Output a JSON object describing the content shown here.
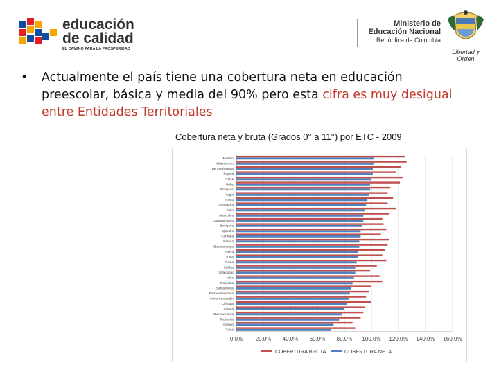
{
  "header": {
    "logo_left": {
      "line1": "educación",
      "line2": "de calidad",
      "tagline": "EL CAMINO PARA LA PROSPERIDAD",
      "colors": [
        "#e41e26",
        "#f7a600",
        "#0b4ea2",
        "#1a1a1a"
      ]
    },
    "ministry": {
      "line1": "Ministerio de",
      "line2": "Educación Nacional",
      "line3": "República de Colombia"
    },
    "motto": "Libertad y Orden"
  },
  "bullet": {
    "text_before": "Actualmente el país tiene una cobertura neta en educación preescolar, básica y media del 90% pero esta ",
    "text_red": "cifra es muy desigual entre Entidades Territoriales"
  },
  "chart_title": "Cobertura neta y bruta (Grados 0° a 11°)  por ETC - 2009",
  "chart_data": {
    "type": "bar",
    "orientation": "horizontal",
    "x_ticks": [
      "0,0%",
      "20,0%",
      "40,0%",
      "60,0%",
      "80,0%",
      "100,0%",
      "120,0%",
      "140,0%",
      "160,0%"
    ],
    "xlim": [
      0,
      160
    ],
    "grid": true,
    "legend_position": "bottom",
    "series": [
      {
        "name": "COBERTURA BRUTA",
        "color": "#c0504d"
      },
      {
        "name": "COBERTURA NETA",
        "color": "#4f81bd"
      }
    ],
    "categories": [
      "Medellín",
      "Villavicencio",
      "Bermeo/Manga",
      "Bogotá",
      "Vélez",
      "Uribe",
      "Envigado",
      "Itagüí",
      "Pasto",
      "Cartagena",
      "Bello",
      "Manizales",
      "Cundinamarca",
      "Envigado",
      "Quindío",
      "Córdoba",
      "Pereira",
      "Bucaramanga",
      "Neiva",
      "Tuluá",
      "Pasto",
      "Caldas",
      "Valledupar",
      "Huila",
      "Risaralda",
      "Santa Marta",
      "Barrancabermeja",
      "Norte Santander",
      "Ciénaga",
      "Arauca",
      "Buenaventura",
      "Riohacha",
      "Quibdó",
      "Tuluá"
    ],
    "neta": [
      102,
      102,
      101,
      101,
      100,
      99,
      99,
      98,
      97,
      96,
      95,
      94,
      94,
      93,
      92,
      92,
      91,
      91,
      90,
      90,
      89,
      88,
      88,
      87,
      86,
      85,
      84,
      83,
      82,
      80,
      78,
      76,
      72,
      70
    ],
    "bruta": [
      125,
      126,
      122,
      118,
      123,
      121,
      114,
      112,
      116,
      112,
      118,
      113,
      108,
      109,
      111,
      107,
      113,
      112,
      110,
      108,
      111,
      104,
      99,
      106,
      108,
      100,
      98,
      96,
      100,
      95,
      94,
      92,
      86,
      88
    ]
  }
}
